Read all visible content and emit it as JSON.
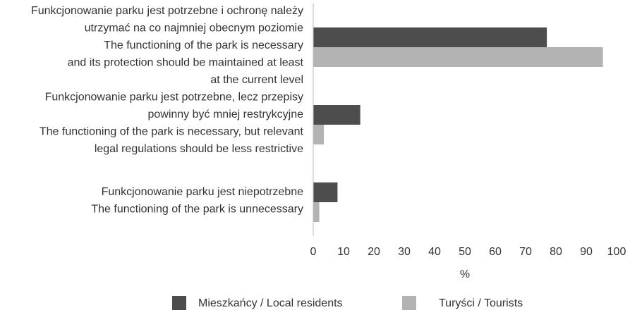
{
  "chart_data": {
    "type": "bar",
    "orientation": "horizontal",
    "categories": [
      [
        "Funkcjonowanie parku jest potrzebne i ochronę należy",
        "utrzymać na co najmniej obecnym poziomie",
        "The functioning of the park is necessary",
        "and its protection should be maintained at least",
        "at the current level"
      ],
      [
        "Funkcjonowanie parku jest potrzebne, lecz przepisy",
        "powinny być mniej restrykcyjne",
        "The functioning of the  park is necessary, but relevant",
        "legal regulations should  be less restrictive"
      ],
      [
        "Funkcjonowanie parku  jest niepotrzebne",
        "The functioning of the park is unnecessary"
      ]
    ],
    "series": [
      {
        "name": "Mieszkańcy / Local residents",
        "color": "#4d4d4d",
        "values": [
          77,
          15.5,
          8
        ]
      },
      {
        "name": "Turyści / Tourists",
        "color": "#b3b3b3",
        "values": [
          95.5,
          3.5,
          2
        ]
      }
    ],
    "xlabel": "%",
    "xlim": [
      0,
      100
    ],
    "xticks": [
      0,
      10,
      20,
      30,
      40,
      50,
      60,
      70,
      80,
      90,
      100
    ],
    "grid": false,
    "legend": "bottom"
  }
}
